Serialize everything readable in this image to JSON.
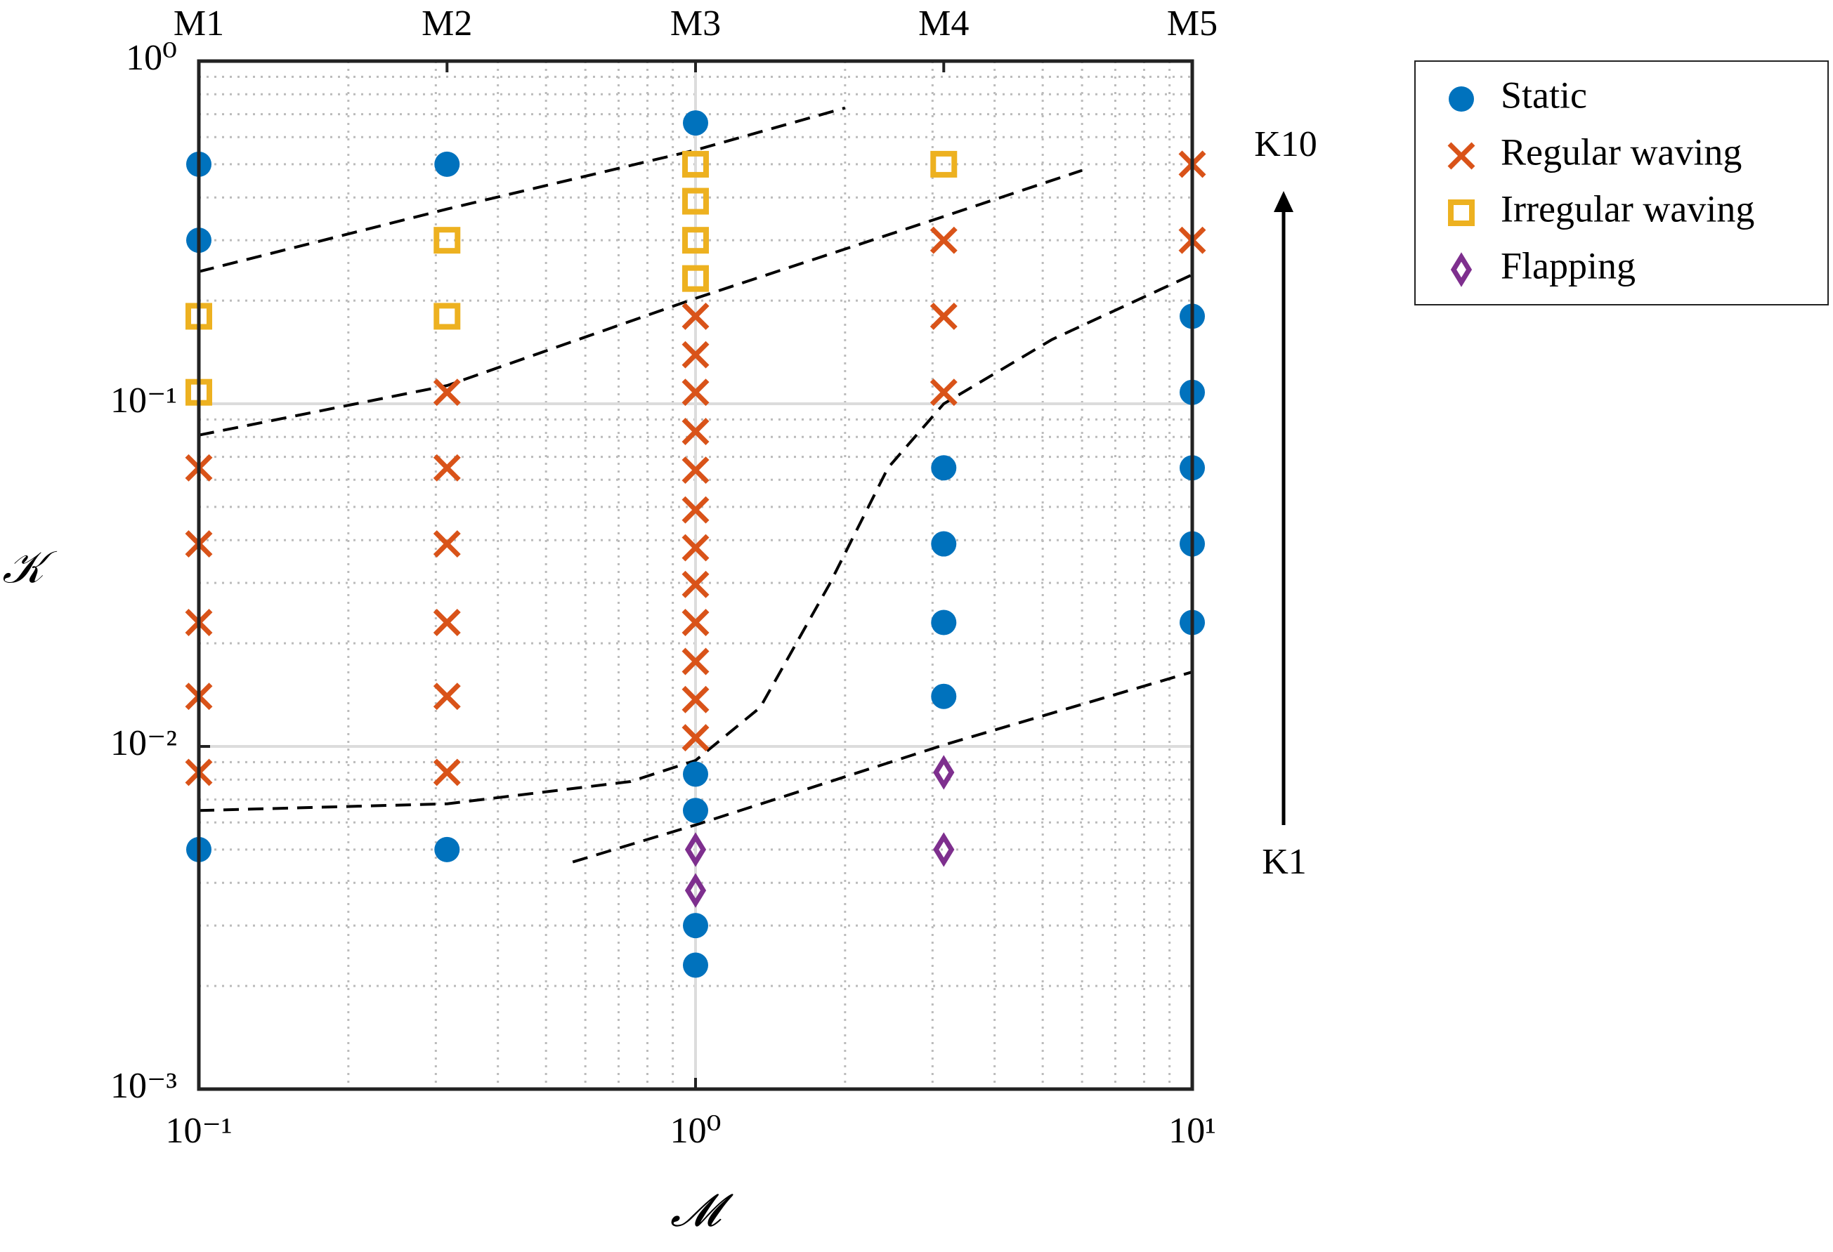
{
  "chart_data": {
    "type": "scatter",
    "xlabel": "𝓜",
    "ylabel": "𝒦",
    "xlog": true,
    "ylog": true,
    "xlim": [
      0.1,
      10
    ],
    "ylim": [
      0.001,
      1
    ],
    "xticks": [
      {
        "value": 0.1,
        "label": "10⁻¹"
      },
      {
        "value": 1,
        "label": "10⁰"
      },
      {
        "value": 10,
        "label": "10¹"
      }
    ],
    "yticks": [
      {
        "value": 0.001,
        "label": "10⁻³"
      },
      {
        "value": 0.01,
        "label": "10⁻²"
      },
      {
        "value": 0.1,
        "label": "10⁻¹"
      },
      {
        "value": 1,
        "label": "10⁰"
      }
    ],
    "xminorticks": [
      0.2,
      0.3,
      0.4,
      0.5,
      0.6,
      0.7,
      0.8,
      0.9,
      2,
      3,
      4,
      5,
      6,
      7,
      8,
      9
    ],
    "yminorticks": [
      0.002,
      0.003,
      0.004,
      0.005,
      0.006,
      0.007,
      0.008,
      0.009,
      0.02,
      0.03,
      0.04,
      0.05,
      0.06,
      0.07,
      0.08,
      0.09,
      0.2,
      0.3,
      0.4,
      0.5,
      0.6,
      0.7,
      0.8,
      0.9
    ],
    "top_ticks": [
      {
        "value": 0.1,
        "label": "M1"
      },
      {
        "value": 0.316,
        "label": "M2"
      },
      {
        "value": 1,
        "label": "M3"
      },
      {
        "value": 3.16,
        "label": "M4"
      },
      {
        "value": 10,
        "label": "M5"
      }
    ],
    "grid": true,
    "legend": "outside-right",
    "annotations": [
      "K10",
      "K1"
    ],
    "series": [
      {
        "name": "Static",
        "color": "#0072bd",
        "marker": "circle",
        "x": [
          0.1,
          0.1,
          0.1,
          0.316,
          0.316,
          1,
          1,
          1,
          1,
          1,
          3.16,
          3.16,
          3.16,
          3.16,
          10,
          10,
          10,
          10,
          10
        ],
        "values": [
          0.5,
          0.3,
          0.005,
          0.5,
          0.005,
          0.66,
          0.0083,
          0.0065,
          0.003,
          0.0023,
          0.065,
          0.039,
          0.023,
          0.014,
          0.18,
          0.108,
          0.065,
          0.039,
          0.023
        ]
      },
      {
        "name": "Regular waving",
        "color": "#d95319",
        "marker": "cross",
        "x": [
          0.1,
          0.1,
          0.1,
          0.1,
          0.1,
          0.316,
          0.316,
          0.316,
          0.316,
          0.316,
          0.316,
          1,
          1,
          1,
          1,
          1,
          1,
          1,
          1,
          1,
          1,
          1,
          1,
          3.16,
          3.16,
          3.16,
          10,
          10
        ],
        "values": [
          0.065,
          0.039,
          0.023,
          0.014,
          0.0084,
          0.108,
          0.065,
          0.039,
          0.023,
          0.014,
          0.0084,
          0.18,
          0.139,
          0.108,
          0.083,
          0.064,
          0.049,
          0.038,
          0.0297,
          0.023,
          0.0177,
          0.0137,
          0.0106,
          0.3,
          0.18,
          0.108,
          0.5,
          0.3
        ]
      },
      {
        "name": "Irregular waving",
        "color": "#edb120",
        "marker": "square",
        "x": [
          0.1,
          0.1,
          0.316,
          0.316,
          1,
          1,
          1,
          1,
          3.16
        ],
        "values": [
          0.18,
          0.108,
          0.3,
          0.18,
          0.5,
          0.39,
          0.3,
          0.232,
          0.5
        ]
      },
      {
        "name": "Flapping",
        "color": "#7e2f8e",
        "marker": "diamond",
        "x": [
          1,
          1,
          3.16,
          3.16
        ],
        "values": [
          0.005,
          0.0038,
          0.0084,
          0.005
        ]
      }
    ],
    "boundaries": [
      {
        "color": "#000000",
        "x": [
          0.1,
          0.316,
          1,
          2
        ],
        "values": [
          0.243,
          0.37,
          0.55,
          0.73
        ]
      },
      {
        "color": "#000000",
        "x": [
          0.1,
          0.316,
          1,
          3.16,
          6
        ],
        "values": [
          0.081,
          0.113,
          0.203,
          0.352,
          0.48
        ]
      },
      {
        "color": "#000000",
        "x": [
          0.1,
          0.316,
          0.74,
          1,
          1.35,
          1.86,
          2.44,
          3.16,
          5.22,
          10
        ],
        "values": [
          0.0065,
          0.0068,
          0.0079,
          0.0091,
          0.013,
          0.0297,
          0.065,
          0.1,
          0.154,
          0.238
        ]
      },
      {
        "color": "#000000",
        "x": [
          0.566,
          1,
          3.16,
          10
        ],
        "values": [
          0.0046,
          0.0059,
          0.0101,
          0.0165
        ]
      }
    ]
  }
}
